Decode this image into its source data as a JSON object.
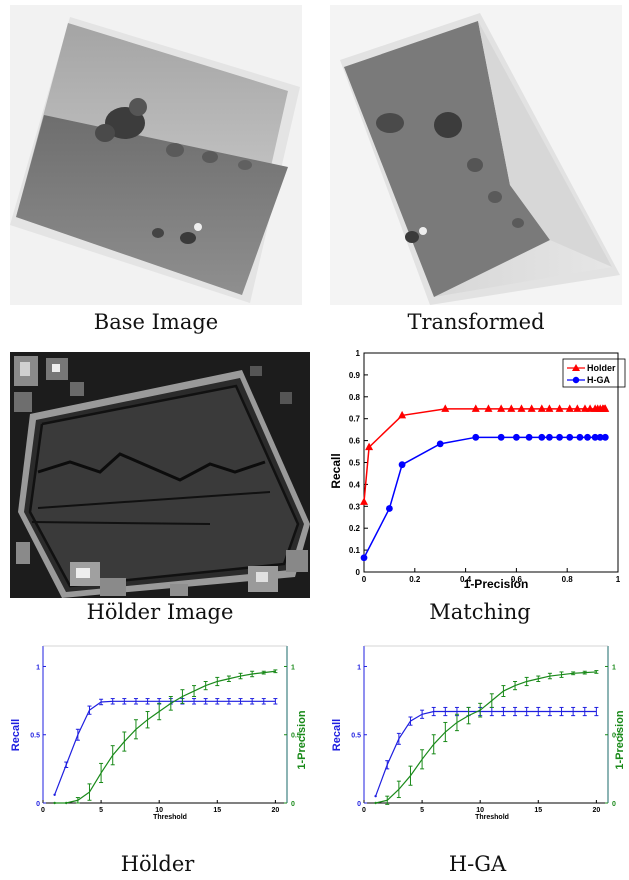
{
  "captions": {
    "base": "Base Image",
    "transformed": "Transformed",
    "holder_image": "Hölder Image",
    "matching": "Matching",
    "holder": "Hölder",
    "hga": "H-GA"
  },
  "chart_data": [
    {
      "type": "line",
      "title": "",
      "xlabel": "1-Precision",
      "ylabel": "Recall",
      "xlim": [
        0,
        1
      ],
      "ylim": [
        0,
        1
      ],
      "xticks": [
        "0",
        "0.2",
        "0.4",
        "0.6",
        "0.8",
        "1"
      ],
      "yticks": [
        "0",
        "0.1",
        "0.2",
        "0.3",
        "0.4",
        "0.5",
        "0.6",
        "0.7",
        "0.8",
        "0.9",
        "1"
      ],
      "legend_position": "top-right",
      "series": [
        {
          "name": "Holder",
          "color": "#ff0000",
          "marker": "triangle",
          "x": [
            0.0,
            0.02,
            0.15,
            0.32,
            0.44,
            0.49,
            0.54,
            0.58,
            0.62,
            0.66,
            0.7,
            0.73,
            0.77,
            0.81,
            0.84,
            0.87,
            0.89,
            0.91,
            0.92,
            0.93,
            0.94,
            0.945,
            0.95
          ],
          "y": [
            0.32,
            0.57,
            0.715,
            0.745,
            0.745,
            0.745,
            0.745,
            0.745,
            0.745,
            0.745,
            0.745,
            0.745,
            0.745,
            0.745,
            0.745,
            0.745,
            0.745,
            0.745,
            0.745,
            0.745,
            0.745,
            0.745,
            0.745
          ]
        },
        {
          "name": "H-GA",
          "color": "#0000ff",
          "marker": "circle",
          "x": [
            0.0,
            0.1,
            0.15,
            0.3,
            0.44,
            0.54,
            0.6,
            0.65,
            0.7,
            0.73,
            0.77,
            0.81,
            0.85,
            0.88,
            0.91,
            0.93,
            0.95
          ],
          "y": [
            0.065,
            0.29,
            0.49,
            0.585,
            0.615,
            0.615,
            0.615,
            0.615,
            0.615,
            0.615,
            0.615,
            0.615,
            0.615,
            0.615,
            0.615,
            0.615,
            0.615
          ]
        }
      ]
    },
    {
      "type": "line",
      "title": "",
      "xlabel": "Threshold",
      "ylabel": "Recall",
      "y2label": "1-Precision",
      "xlim": [
        0,
        21
      ],
      "ylim": [
        0,
        1.15
      ],
      "xticks": [
        "0",
        "5",
        "10",
        "15",
        "20"
      ],
      "yticks": [
        "0",
        "0.5",
        "1"
      ],
      "y2ticks": [
        "0",
        "0.5",
        "1"
      ],
      "series": [
        {
          "name": "Recall",
          "color": "#1f1fe0",
          "x": [
            1,
            2,
            3,
            4,
            5,
            6,
            7,
            8,
            9,
            10,
            11,
            12,
            13,
            14,
            15,
            16,
            17,
            18,
            19,
            20
          ],
          "y": [
            0.06,
            0.28,
            0.5,
            0.68,
            0.74,
            0.745,
            0.745,
            0.745,
            0.745,
            0.745,
            0.745,
            0.745,
            0.745,
            0.745,
            0.745,
            0.745,
            0.745,
            0.745,
            0.745,
            0.745
          ],
          "err": [
            0,
            0.02,
            0.04,
            0.03,
            0.02,
            0.02,
            0.02,
            0.02,
            0.02,
            0.02,
            0.02,
            0.02,
            0.02,
            0.02,
            0.02,
            0.02,
            0.02,
            0.02,
            0.02,
            0.02
          ]
        },
        {
          "name": "1-Precision",
          "color": "#1a8a1a",
          "x": [
            1,
            2,
            3,
            4,
            5,
            6,
            7,
            8,
            9,
            10,
            11,
            12,
            13,
            14,
            15,
            16,
            17,
            18,
            19,
            20
          ],
          "y": [
            0.0,
            0.0,
            0.02,
            0.08,
            0.22,
            0.35,
            0.45,
            0.54,
            0.61,
            0.67,
            0.73,
            0.78,
            0.82,
            0.86,
            0.89,
            0.91,
            0.93,
            0.945,
            0.955,
            0.965
          ],
          "err": [
            0,
            0,
            0.02,
            0.06,
            0.07,
            0.07,
            0.07,
            0.07,
            0.06,
            0.06,
            0.05,
            0.05,
            0.04,
            0.03,
            0.03,
            0.02,
            0.02,
            0.02,
            0.01,
            0.01
          ]
        }
      ]
    },
    {
      "type": "line",
      "title": "",
      "xlabel": "Threshold",
      "ylabel": "Recall",
      "y2label": "1-Precision",
      "xlim": [
        0,
        21
      ],
      "ylim": [
        0,
        1.15
      ],
      "xticks": [
        "0",
        "5",
        "10",
        "15",
        "20"
      ],
      "yticks": [
        "0",
        "0.5",
        "1"
      ],
      "y2ticks": [
        "0",
        "0.5",
        "1"
      ],
      "series": [
        {
          "name": "Recall",
          "color": "#1f1fe0",
          "x": [
            1,
            2,
            3,
            4,
            5,
            6,
            7,
            8,
            9,
            10,
            11,
            12,
            13,
            14,
            15,
            16,
            17,
            18,
            19,
            20
          ],
          "y": [
            0.05,
            0.28,
            0.47,
            0.6,
            0.65,
            0.67,
            0.67,
            0.67,
            0.67,
            0.67,
            0.67,
            0.67,
            0.67,
            0.67,
            0.67,
            0.67,
            0.67,
            0.67,
            0.67,
            0.67
          ],
          "err": [
            0,
            0.03,
            0.04,
            0.03,
            0.03,
            0.03,
            0.03,
            0.03,
            0.03,
            0.03,
            0.03,
            0.03,
            0.03,
            0.03,
            0.03,
            0.03,
            0.03,
            0.03,
            0.03,
            0.03
          ]
        },
        {
          "name": "1-Precision",
          "color": "#1a8a1a",
          "x": [
            1,
            2,
            3,
            4,
            5,
            6,
            7,
            8,
            9,
            10,
            11,
            12,
            13,
            14,
            15,
            16,
            17,
            18,
            19,
            20
          ],
          "y": [
            0.0,
            0.02,
            0.1,
            0.2,
            0.32,
            0.43,
            0.52,
            0.59,
            0.64,
            0.68,
            0.75,
            0.82,
            0.86,
            0.89,
            0.91,
            0.93,
            0.94,
            0.95,
            0.955,
            0.96
          ],
          "err": [
            0,
            0.03,
            0.06,
            0.07,
            0.07,
            0.07,
            0.07,
            0.06,
            0.06,
            0.05,
            0.05,
            0.04,
            0.03,
            0.03,
            0.02,
            0.02,
            0.02,
            0.01,
            0.01,
            0.01
          ]
        }
      ]
    }
  ]
}
